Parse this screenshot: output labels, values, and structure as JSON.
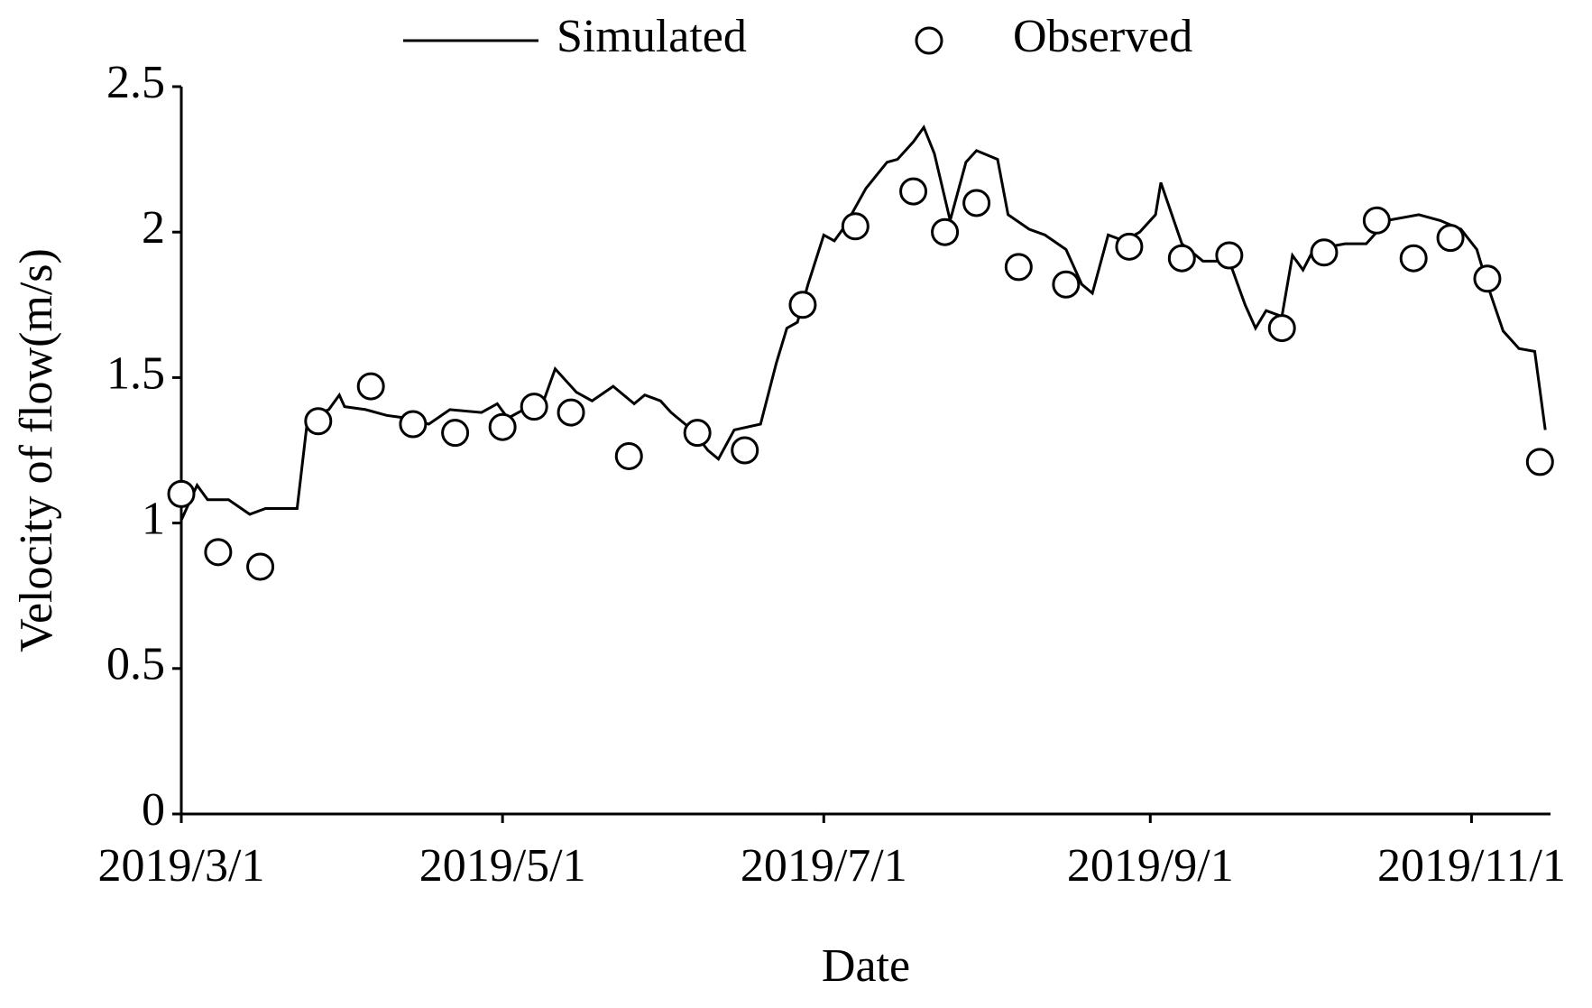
{
  "chart_data": {
    "type": "line",
    "x_label": "Date",
    "y_label": "Velocity of flow(m/s)",
    "xlim": [
      "2019/3/1",
      "2019/11/16"
    ],
    "xticks": [
      "2019/3/1",
      "2019/5/1",
      "2019/7/1",
      "2019/9/1",
      "2019/11/1"
    ],
    "ylim": [
      0,
      2.5
    ],
    "yticks": [
      0,
      0.5,
      1,
      1.5,
      2,
      2.5
    ],
    "legend": "top",
    "series": [
      {
        "name": "Simulated",
        "style": "line",
        "color": "#000000",
        "x": [
          "2019/3/1",
          "2019/3/4",
          "2019/3/6",
          "2019/3/10",
          "2019/3/14",
          "2019/3/17",
          "2019/3/23",
          "2019/3/25",
          "2019/3/29",
          "2019/3/31",
          "2019/4/1",
          "2019/4/5",
          "2019/4/9",
          "2019/4/13",
          "2019/4/17",
          "2019/4/21",
          "2019/4/27",
          "2019/4/30",
          "2019/5/2",
          "2019/5/5",
          "2019/5/9",
          "2019/5/11",
          "2019/5/15",
          "2019/5/18",
          "2019/5/22",
          "2019/5/26",
          "2019/5/28",
          "2019/5/31",
          "2019/6/2",
          "2019/6/6",
          "2019/6/9",
          "2019/6/11",
          "2019/6/14",
          "2019/6/19",
          "2019/6/22",
          "2019/6/24",
          "2019/6/26",
          "2019/6/28",
          "2019/7/1",
          "2019/7/3",
          "2019/7/5",
          "2019/7/9",
          "2019/7/13",
          "2019/7/15",
          "2019/7/18",
          "2019/7/20",
          "2019/7/22",
          "2019/7/25",
          "2019/7/28",
          "2019/7/30",
          "2019/8/3",
          "2019/8/5",
          "2019/8/9",
          "2019/8/12",
          "2019/8/16",
          "2019/8/19",
          "2019/8/21",
          "2019/8/24",
          "2019/8/27",
          "2019/8/30",
          "2019/9/2",
          "2019/9/3",
          "2019/9/7",
          "2019/9/11",
          "2019/9/16",
          "2019/9/19",
          "2019/9/21",
          "2019/9/23",
          "2019/9/26",
          "2019/9/28",
          "2019/9/30",
          "2019/10/2",
          "2019/10/8",
          "2019/10/12",
          "2019/10/16",
          "2019/10/22",
          "2019/10/26",
          "2019/10/30",
          "2019/11/2",
          "2019/11/4",
          "2019/11/7",
          "2019/11/10",
          "2019/11/13",
          "2019/11/15"
        ],
        "values": [
          1.01,
          1.13,
          1.08,
          1.08,
          1.03,
          1.05,
          1.05,
          1.36,
          1.39,
          1.44,
          1.4,
          1.39,
          1.37,
          1.36,
          1.34,
          1.39,
          1.38,
          1.41,
          1.36,
          1.39,
          1.43,
          1.53,
          1.45,
          1.42,
          1.47,
          1.41,
          1.44,
          1.42,
          1.38,
          1.32,
          1.25,
          1.22,
          1.32,
          1.34,
          1.55,
          1.67,
          1.69,
          1.82,
          1.99,
          1.97,
          2.02,
          2.15,
          2.24,
          2.25,
          2.31,
          2.36,
          2.27,
          2.04,
          2.24,
          2.28,
          2.25,
          2.06,
          2.01,
          1.99,
          1.94,
          1.82,
          1.79,
          1.99,
          1.97,
          2.0,
          2.06,
          2.17,
          1.96,
          1.9,
          1.9,
          1.75,
          1.67,
          1.73,
          1.71,
          1.92,
          1.87,
          1.94,
          1.96,
          1.96,
          2.04,
          2.06,
          2.04,
          2.01,
          1.94,
          1.82,
          1.66,
          1.6,
          1.59,
          1.32
        ]
      },
      {
        "name": "Observed",
        "style": "marker",
        "color": "#000000",
        "x": [
          "2019/3/1",
          "2019/3/8",
          "2019/3/16",
          "2019/3/27",
          "2019/4/6",
          "2019/4/14",
          "2019/4/22",
          "2019/5/1",
          "2019/5/7",
          "2019/5/14",
          "2019/5/25",
          "2019/6/7",
          "2019/6/16",
          "2019/6/27",
          "2019/7/7",
          "2019/7/18",
          "2019/7/24",
          "2019/7/30",
          "2019/8/7",
          "2019/8/16",
          "2019/8/28",
          "2019/9/7",
          "2019/9/16",
          "2019/9/26",
          "2019/10/4",
          "2019/10/14",
          "2019/10/21",
          "2019/10/28",
          "2019/11/4",
          "2019/11/14"
        ],
        "values": [
          1.1,
          0.9,
          0.85,
          1.35,
          1.47,
          1.34,
          1.31,
          1.33,
          1.4,
          1.38,
          1.23,
          1.31,
          1.25,
          1.75,
          2.02,
          2.14,
          2.0,
          2.1,
          1.88,
          1.82,
          1.95,
          1.91,
          1.92,
          1.67,
          1.93,
          2.04,
          1.91,
          1.98,
          1.84,
          1.21
        ]
      }
    ]
  }
}
